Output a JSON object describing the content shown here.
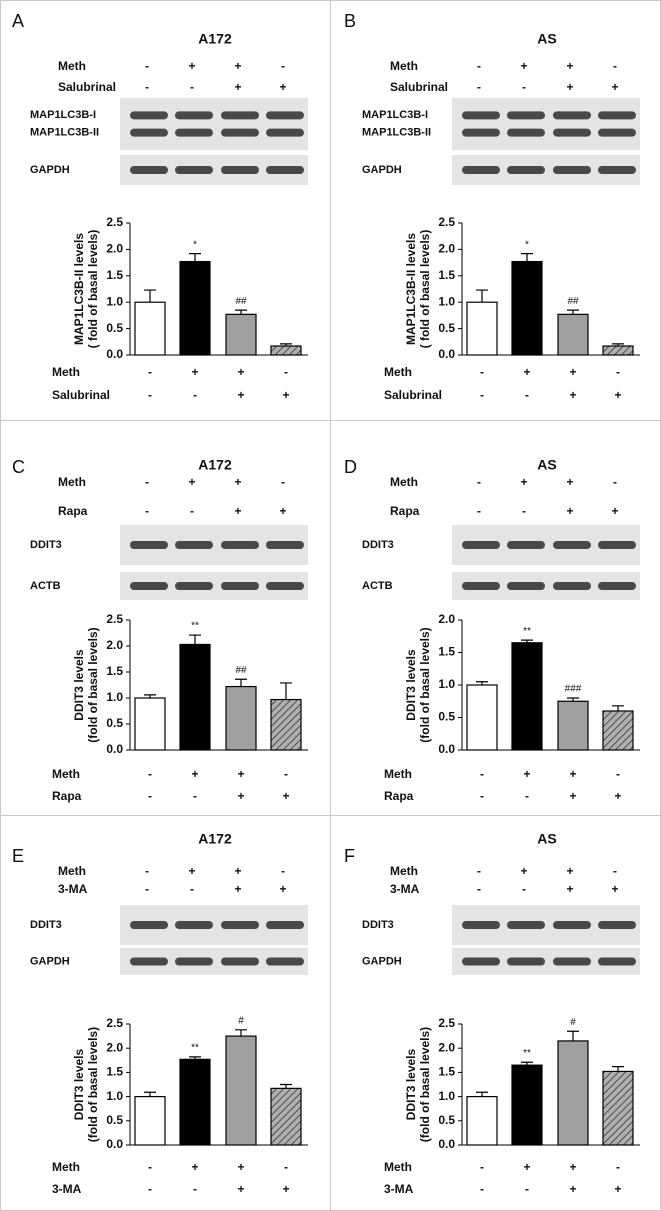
{
  "chart_data": [
    {
      "type": "bar",
      "panel": "A",
      "title": "A172",
      "treatments": [
        {
          "name": "Meth",
          "signs": [
            "-",
            "+",
            "+",
            "-"
          ]
        },
        {
          "name": "Salubrinal",
          "signs": [
            "-",
            "-",
            "+",
            "+"
          ]
        }
      ],
      "blot_labels": [
        [
          "MAP1LC3B-I",
          "MAP1LC3B-II"
        ],
        [
          "GAPDH"
        ]
      ],
      "ylabel": [
        "MAP1LC3B-II levels",
        "( fold of basal levels)"
      ],
      "values": [
        1.0,
        1.77,
        0.77,
        0.17
      ],
      "errors": [
        0.23,
        0.15,
        0.08,
        0.04
      ],
      "significance": [
        null,
        "*",
        "##",
        null
      ],
      "colors": [
        "#ffffff",
        "#000000",
        "#a0a0a0",
        "#a0a0a0"
      ],
      "hatched": [
        false,
        false,
        false,
        true
      ],
      "ylim": [
        0,
        2.5
      ],
      "yticks": [
        {
          "value": 0,
          "label": "0.0"
        },
        0.5,
        {
          "value": 1,
          "label": "1.0"
        },
        1.5,
        {
          "value": 2,
          "label": "2.0"
        },
        2.5
      ]
    },
    {
      "type": "bar",
      "panel": "B",
      "title": "AS",
      "treatments": [
        {
          "name": "Meth",
          "signs": [
            "-",
            "+",
            "+",
            "-"
          ]
        },
        {
          "name": "Salubrinal",
          "signs": [
            "-",
            "-",
            "+",
            "+"
          ]
        }
      ],
      "blot_labels": [
        [
          "MAP1LC3B-I",
          "MAP1LC3B-II"
        ],
        [
          "GAPDH"
        ]
      ],
      "ylabel": [
        "MAP1LC3B-II levels",
        "( fold of basal levels)"
      ],
      "values": [
        1.0,
        1.77,
        0.77,
        0.17
      ],
      "errors": [
        0.23,
        0.15,
        0.08,
        0.04
      ],
      "significance": [
        null,
        "*",
        "##",
        null
      ],
      "colors": [
        "#ffffff",
        "#000000",
        "#a0a0a0",
        "#a0a0a0"
      ],
      "hatched": [
        false,
        false,
        false,
        true
      ],
      "ylim": [
        0,
        2.5
      ],
      "yticks": [
        {
          "value": 0,
          "label": "0.0"
        },
        0.5,
        {
          "value": 1,
          "label": "1.0"
        },
        1.5,
        {
          "value": 2,
          "label": "2.0"
        },
        2.5
      ]
    },
    {
      "type": "bar",
      "panel": "C",
      "title": "A172",
      "treatments": [
        {
          "name": "Meth",
          "signs": [
            "-",
            "+",
            "+",
            "-"
          ]
        },
        {
          "name": "Rapa",
          "signs": [
            "-",
            "-",
            "+",
            "+"
          ]
        }
      ],
      "blot_labels": [
        [
          "DDIT3"
        ],
        [
          "ACTB"
        ]
      ],
      "ylabel": [
        "DDIT3 levels",
        "(fold of basal levels)"
      ],
      "values": [
        1.0,
        2.03,
        1.22,
        0.97
      ],
      "errors": [
        0.06,
        0.18,
        0.14,
        0.32
      ],
      "significance": [
        null,
        "**",
        "##",
        null
      ],
      "colors": [
        "#ffffff",
        "#000000",
        "#a0a0a0",
        "#a0a0a0"
      ],
      "hatched": [
        false,
        false,
        false,
        true
      ],
      "ylim": [
        0,
        2.5
      ],
      "yticks": [
        {
          "value": 0,
          "label": "0.0"
        },
        0.5,
        {
          "value": 1,
          "label": "1.0"
        },
        1.5,
        {
          "value": 2,
          "label": "2.0"
        },
        2.5
      ]
    },
    {
      "type": "bar",
      "panel": "D",
      "title": "AS",
      "treatments": [
        {
          "name": "Meth",
          "signs": [
            "-",
            "+",
            "+",
            "-"
          ]
        },
        {
          "name": "Rapa",
          "signs": [
            "-",
            "-",
            "+",
            "+"
          ]
        }
      ],
      "blot_labels": [
        [
          "DDIT3"
        ],
        [
          "ACTB"
        ]
      ],
      "ylabel": [
        "DDIT3 levels",
        "(fold of basal levels)"
      ],
      "values": [
        1.0,
        1.65,
        0.75,
        0.6
      ],
      "errors": [
        0.05,
        0.04,
        0.05,
        0.08
      ],
      "significance": [
        null,
        "**",
        "###",
        null
      ],
      "colors": [
        "#ffffff",
        "#000000",
        "#a0a0a0",
        "#a0a0a0"
      ],
      "hatched": [
        false,
        false,
        false,
        true
      ],
      "ylim": [
        0,
        2
      ],
      "yticks": [
        {
          "value": 0,
          "label": "0.0"
        },
        0.5,
        {
          "value": 1,
          "label": "1.0"
        },
        1.5,
        {
          "value": 2,
          "label": "2.0"
        }
      ]
    },
    {
      "type": "bar",
      "panel": "E",
      "title": "A172",
      "treatments": [
        {
          "name": "Meth",
          "signs": [
            "-",
            "+",
            "+",
            "-"
          ]
        },
        {
          "name": "3-MA",
          "signs": [
            "-",
            "-",
            "+",
            "+"
          ]
        }
      ],
      "blot_labels": [
        [
          "DDIT3"
        ],
        [
          "GAPDH"
        ]
      ],
      "ylabel": [
        "DDIT3 levels",
        "(fold of basal levels)"
      ],
      "values": [
        1.0,
        1.77,
        2.25,
        1.17
      ],
      "errors": [
        0.09,
        0.05,
        0.13,
        0.08
      ],
      "significance": [
        null,
        "**",
        "#",
        null
      ],
      "colors": [
        "#ffffff",
        "#000000",
        "#a0a0a0",
        "#a0a0a0"
      ],
      "hatched": [
        false,
        false,
        false,
        true
      ],
      "ylim": [
        0,
        2.5
      ],
      "yticks": [
        {
          "value": 0,
          "label": "0.0"
        },
        0.5,
        {
          "value": 1,
          "label": "1.0"
        },
        1.5,
        {
          "value": 2,
          "label": "2.0"
        },
        2.5
      ]
    },
    {
      "type": "bar",
      "panel": "F",
      "title": "AS",
      "treatments": [
        {
          "name": "Meth",
          "signs": [
            "-",
            "+",
            "+",
            "-"
          ]
        },
        {
          "name": "3-MA",
          "signs": [
            "-",
            "-",
            "+",
            "+"
          ]
        }
      ],
      "blot_labels": [
        [
          "DDIT3"
        ],
        [
          "GAPDH"
        ]
      ],
      "ylabel": [
        "DDIT3 levels",
        "(fold of basal levels)"
      ],
      "values": [
        1.0,
        1.65,
        2.15,
        1.52
      ],
      "errors": [
        0.09,
        0.06,
        0.2,
        0.1
      ],
      "significance": [
        null,
        "**",
        "#",
        null
      ],
      "colors": [
        "#ffffff",
        "#000000",
        "#a0a0a0",
        "#a0a0a0"
      ],
      "hatched": [
        false,
        false,
        false,
        true
      ],
      "ylim": [
        0,
        2.5
      ],
      "yticks": [
        {
          "value": 0,
          "label": "0.0"
        },
        0.5,
        {
          "value": 1,
          "label": "1.0"
        },
        1.5,
        {
          "value": 2,
          "label": "2.0"
        },
        2.5
      ]
    }
  ]
}
